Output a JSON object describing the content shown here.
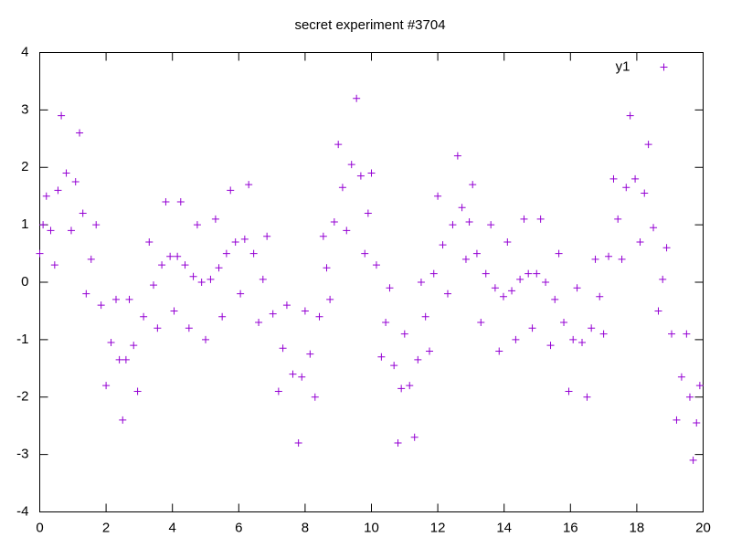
{
  "chart_data": {
    "type": "scatter",
    "title": "secret experiment #3704",
    "xlim": [
      0,
      20
    ],
    "xticks": [
      0,
      2,
      4,
      6,
      8,
      10,
      12,
      14,
      16,
      18,
      20
    ],
    "ylim": [
      -4,
      4
    ],
    "yticks": [
      -4,
      -3,
      -2,
      -1,
      0,
      1,
      2,
      3,
      4
    ],
    "legend": "top-right",
    "series": [
      {
        "name": "y1",
        "color": "#9400d3",
        "x": [
          0.0,
          0.1,
          0.2,
          0.33,
          0.45,
          0.55,
          0.65,
          0.8,
          0.95,
          1.08,
          1.2,
          1.3,
          1.4,
          1.55,
          1.7,
          1.85,
          2.0,
          2.15,
          2.3,
          2.4,
          2.5,
          2.6,
          2.7,
          2.83,
          2.95,
          3.13,
          3.3,
          3.43,
          3.55,
          3.68,
          3.8,
          3.93,
          4.05,
          4.15,
          4.25,
          4.38,
          4.5,
          4.63,
          4.75,
          4.88,
          5.0,
          5.15,
          5.3,
          5.4,
          5.5,
          5.63,
          5.75,
          5.9,
          6.05,
          6.18,
          6.3,
          6.45,
          6.6,
          6.73,
          6.85,
          7.03,
          7.2,
          7.33,
          7.45,
          7.63,
          7.8,
          7.9,
          8.0,
          8.15,
          8.3,
          8.43,
          8.55,
          8.65,
          8.75,
          8.88,
          9.0,
          9.13,
          9.25,
          9.4,
          9.55,
          9.68,
          9.8,
          9.9,
          10.0,
          10.15,
          10.3,
          10.43,
          10.55,
          10.68,
          10.8,
          10.9,
          11.0,
          11.15,
          11.3,
          11.4,
          11.5,
          11.63,
          11.75,
          11.88,
          12.0,
          12.15,
          12.3,
          12.45,
          12.6,
          12.73,
          12.85,
          12.95,
          13.05,
          13.18,
          13.3,
          13.45,
          13.6,
          13.73,
          13.85,
          13.98,
          14.1,
          14.23,
          14.35,
          14.48,
          14.6,
          14.73,
          14.85,
          14.98,
          15.1,
          15.25,
          15.4,
          15.53,
          15.65,
          15.8,
          15.95,
          16.08,
          16.2,
          16.35,
          16.5,
          16.63,
          16.75,
          16.88,
          17.0,
          17.15,
          17.3,
          17.43,
          17.55,
          17.68,
          17.8,
          17.95,
          18.1,
          18.23,
          18.35,
          18.5,
          18.65,
          18.78,
          18.9,
          19.05,
          19.2,
          19.35,
          19.5,
          19.6,
          19.7,
          19.8,
          19.9
        ],
        "values": [
          0.5,
          1.0,
          1.5,
          0.9,
          0.3,
          1.6,
          2.9,
          1.9,
          0.9,
          1.75,
          2.6,
          1.2,
          -0.2,
          0.4,
          1.0,
          -0.4,
          -1.8,
          -1.05,
          -0.3,
          -1.35,
          -2.4,
          -1.35,
          -0.3,
          -1.1,
          -1.9,
          -0.6,
          0.7,
          -0.05,
          -0.8,
          0.3,
          1.4,
          0.45,
          -0.5,
          0.45,
          1.4,
          0.3,
          -0.8,
          0.1,
          1.0,
          0.0,
          -1.0,
          0.05,
          1.1,
          0.25,
          -0.6,
          0.5,
          1.6,
          0.7,
          -0.2,
          0.75,
          1.7,
          0.5,
          -0.7,
          0.05,
          0.8,
          -0.55,
          -1.9,
          -1.15,
          -0.4,
          -1.6,
          -2.8,
          -1.65,
          -0.5,
          -1.25,
          -2.0,
          -0.6,
          0.8,
          0.25,
          -0.3,
          1.05,
          2.4,
          1.65,
          0.9,
          2.05,
          3.2,
          1.85,
          0.5,
          1.2,
          1.9,
          0.3,
          -1.3,
          -0.7,
          -0.1,
          -1.45,
          -2.8,
          -1.85,
          -0.9,
          -1.8,
          -2.7,
          -1.35,
          0.0,
          -0.6,
          -1.2,
          0.15,
          1.5,
          0.65,
          -0.2,
          1.0,
          2.2,
          1.3,
          0.4,
          1.05,
          1.7,
          0.5,
          -0.7,
          0.15,
          1.0,
          -0.1,
          -1.2,
          -0.25,
          0.7,
          -0.15,
          -1.0,
          0.05,
          1.1,
          0.15,
          -0.8,
          0.15,
          1.1,
          0.0,
          -1.1,
          -0.3,
          0.5,
          -0.7,
          -1.9,
          -1.0,
          -0.1,
          -1.05,
          -2.0,
          -0.8,
          0.4,
          -0.25,
          -0.9,
          0.45,
          1.8,
          1.1,
          0.4,
          1.65,
          2.9,
          1.8,
          0.7,
          1.55,
          2.4,
          0.95,
          -0.5,
          0.05,
          0.6,
          -0.9,
          -2.4,
          -1.65,
          -0.9,
          -2.0,
          -3.1,
          -2.45,
          -1.8
        ]
      }
    ]
  }
}
